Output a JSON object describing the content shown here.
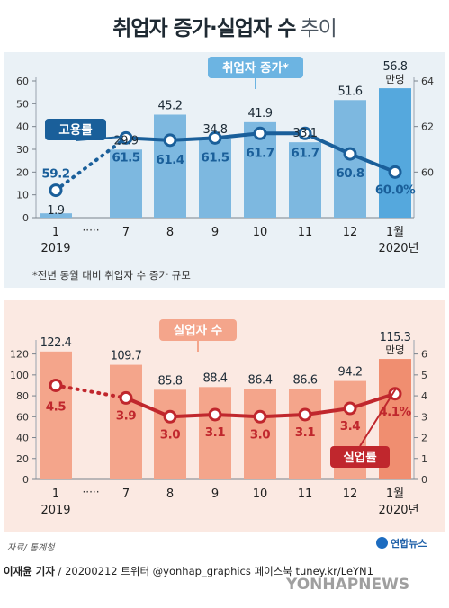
{
  "title": {
    "main": "취업자 증가·실업자 수",
    "sub": "추이"
  },
  "chart_data": [
    {
      "type": "bar",
      "title": "",
      "categories": [
        "1",
        "7",
        "8",
        "9",
        "10",
        "11",
        "12",
        "1월"
      ],
      "category_sublabels": [
        "2019",
        "",
        "",
        "",
        "",
        "",
        "",
        "2020년"
      ],
      "gap_label": "·····",
      "series": [
        {
          "name": "취업자 증가*",
          "kind": "bar",
          "axis": "left",
          "values": [
            1.9,
            29.9,
            45.2,
            34.8,
            41.9,
            33.1,
            51.6,
            56.8
          ],
          "labels": [
            "1.9",
            "29.9",
            "45.2",
            "34.8",
            "41.9",
            "33.1",
            "51.6",
            "56.8"
          ]
        },
        {
          "name": "고용률",
          "kind": "line",
          "axis": "right",
          "values": [
            59.2,
            61.5,
            61.4,
            61.5,
            61.7,
            61.7,
            60.8,
            60.0
          ],
          "labels": [
            "59.2",
            "61.5",
            "61.4",
            "61.5",
            "61.7",
            "61.7",
            "60.8",
            "60.0%"
          ]
        }
      ],
      "unit_label": "만명",
      "ylim": [
        0,
        60
      ],
      "yticks": [
        "0",
        "10",
        "20",
        "30",
        "40",
        "50",
        "60"
      ],
      "y2lim": [
        58,
        64
      ],
      "y2ticks": [
        "60",
        "62",
        "64"
      ],
      "footnote": "*전년 동월 대비 취업자 수 증가 규모",
      "colors": {
        "bar": "#7db8e0",
        "bar_last": "#55a8dd",
        "line": "#1a5f9a",
        "bar_label": "#1d2b36",
        "line_label": "#1a5f9a",
        "legend_bar": "#6cb4e2",
        "legend_line": "#1a5f9a"
      }
    },
    {
      "type": "bar",
      "title": "",
      "categories": [
        "1",
        "7",
        "8",
        "9",
        "10",
        "11",
        "12",
        "1월"
      ],
      "category_sublabels": [
        "2019",
        "",
        "",
        "",
        "",
        "",
        "",
        "2020년"
      ],
      "gap_label": "·····",
      "series": [
        {
          "name": "실업자 수",
          "kind": "bar",
          "axis": "left",
          "values": [
            122.4,
            109.7,
            85.8,
            88.4,
            86.4,
            86.6,
            94.2,
            115.3
          ],
          "labels": [
            "122.4",
            "109.7",
            "85.8",
            "88.4",
            "86.4",
            "86.6",
            "94.2",
            "115.3"
          ]
        },
        {
          "name": "실업률",
          "kind": "line",
          "axis": "right",
          "values": [
            4.5,
            3.9,
            3.0,
            3.1,
            3.0,
            3.1,
            3.4,
            4.1
          ],
          "labels": [
            "4.5",
            "3.9",
            "3.0",
            "3.1",
            "3.0",
            "3.1",
            "3.4",
            "4.1%"
          ]
        }
      ],
      "unit_label": "만명",
      "ylim": [
        0,
        130
      ],
      "yticks": [
        "0",
        "20",
        "40",
        "60",
        "80",
        "100",
        "120"
      ],
      "y2lim": [
        0,
        6.5
      ],
      "y2ticks": [
        "0",
        "1",
        "2",
        "3",
        "4",
        "5",
        "6"
      ],
      "colors": {
        "bar": "#f4a58b",
        "bar_last": "#f08e70",
        "line": "#c0272d",
        "bar_label": "#1d2b36",
        "line_label": "#c0272d",
        "legend_bar": "#f4a58b",
        "legend_line": "#c0272d"
      }
    }
  ],
  "footer": {
    "source": "자료/ 통계청",
    "logo": "연합뉴스",
    "author": "이재윤 기자",
    "credit_rest": " / 20200212   트위터 @yonhap_graphics  페이스북 tuney.kr/LeYN1",
    "watermark": "YONHAPNEWS"
  }
}
